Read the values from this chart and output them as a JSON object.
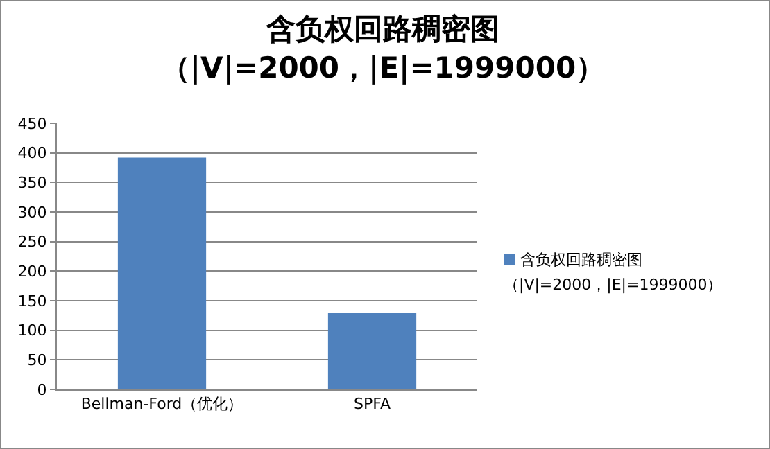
{
  "chart_data": {
    "type": "bar",
    "title": "含负权回路稠密图（|V|=2000，|E|=1999000）",
    "categories": [
      "Bellman-Ford（优化）",
      "SPFA"
    ],
    "series": [
      {
        "name": "含负权回路稠密图（|V|=2000，|E|=1999000）",
        "color": "#4f81bd",
        "values": [
          392,
          129
        ]
      }
    ],
    "ylim": [
      0,
      450
    ],
    "yticks": [
      0,
      50,
      100,
      150,
      200,
      250,
      300,
      350,
      400,
      450
    ],
    "grid": "y",
    "legend": "right"
  }
}
